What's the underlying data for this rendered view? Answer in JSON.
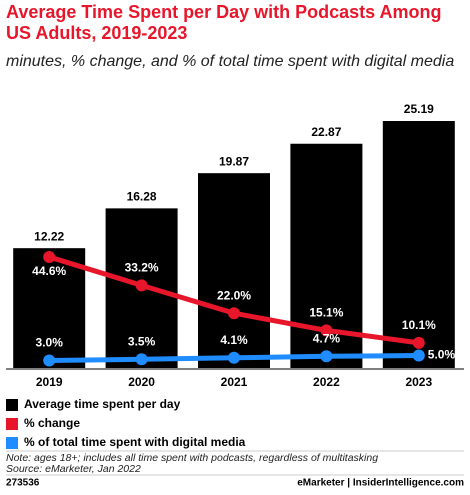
{
  "chart_data": {
    "type": "bar",
    "title": "Average Time Spent per Day with Podcasts Among US Adults, 2019-2023",
    "subtitle": "minutes, % change, and % of total time spent with digital media",
    "categories": [
      "2019",
      "2020",
      "2021",
      "2022",
      "2023"
    ],
    "series": [
      {
        "name": "Average time spent per day",
        "type": "bar",
        "color": "#000000",
        "values": [
          12.22,
          16.28,
          19.87,
          22.87,
          25.19
        ]
      },
      {
        "name": "% change",
        "type": "line",
        "color": "#e8162b",
        "values": [
          44.6,
          33.2,
          22.0,
          15.1,
          10.1
        ],
        "value_labels": [
          "44.6%",
          "33.2%",
          "22.0%",
          "15.1%",
          "10.1%"
        ]
      },
      {
        "name": "% of total time spent with digital media",
        "type": "line",
        "color": "#1f8cff",
        "values": [
          3.0,
          3.5,
          4.1,
          4.7,
          5.0
        ],
        "value_labels": [
          "3.0%",
          "3.5%",
          "4.1%",
          "4.7%",
          "5.0%"
        ]
      }
    ],
    "note": "Note: ages 18+; includes all time spent with podcasts, regardless of multitasking",
    "source": "Source: eMarketer, Jan 2022",
    "id": "273536",
    "brand": "eMarketer | InsiderIntelligence.com"
  }
}
